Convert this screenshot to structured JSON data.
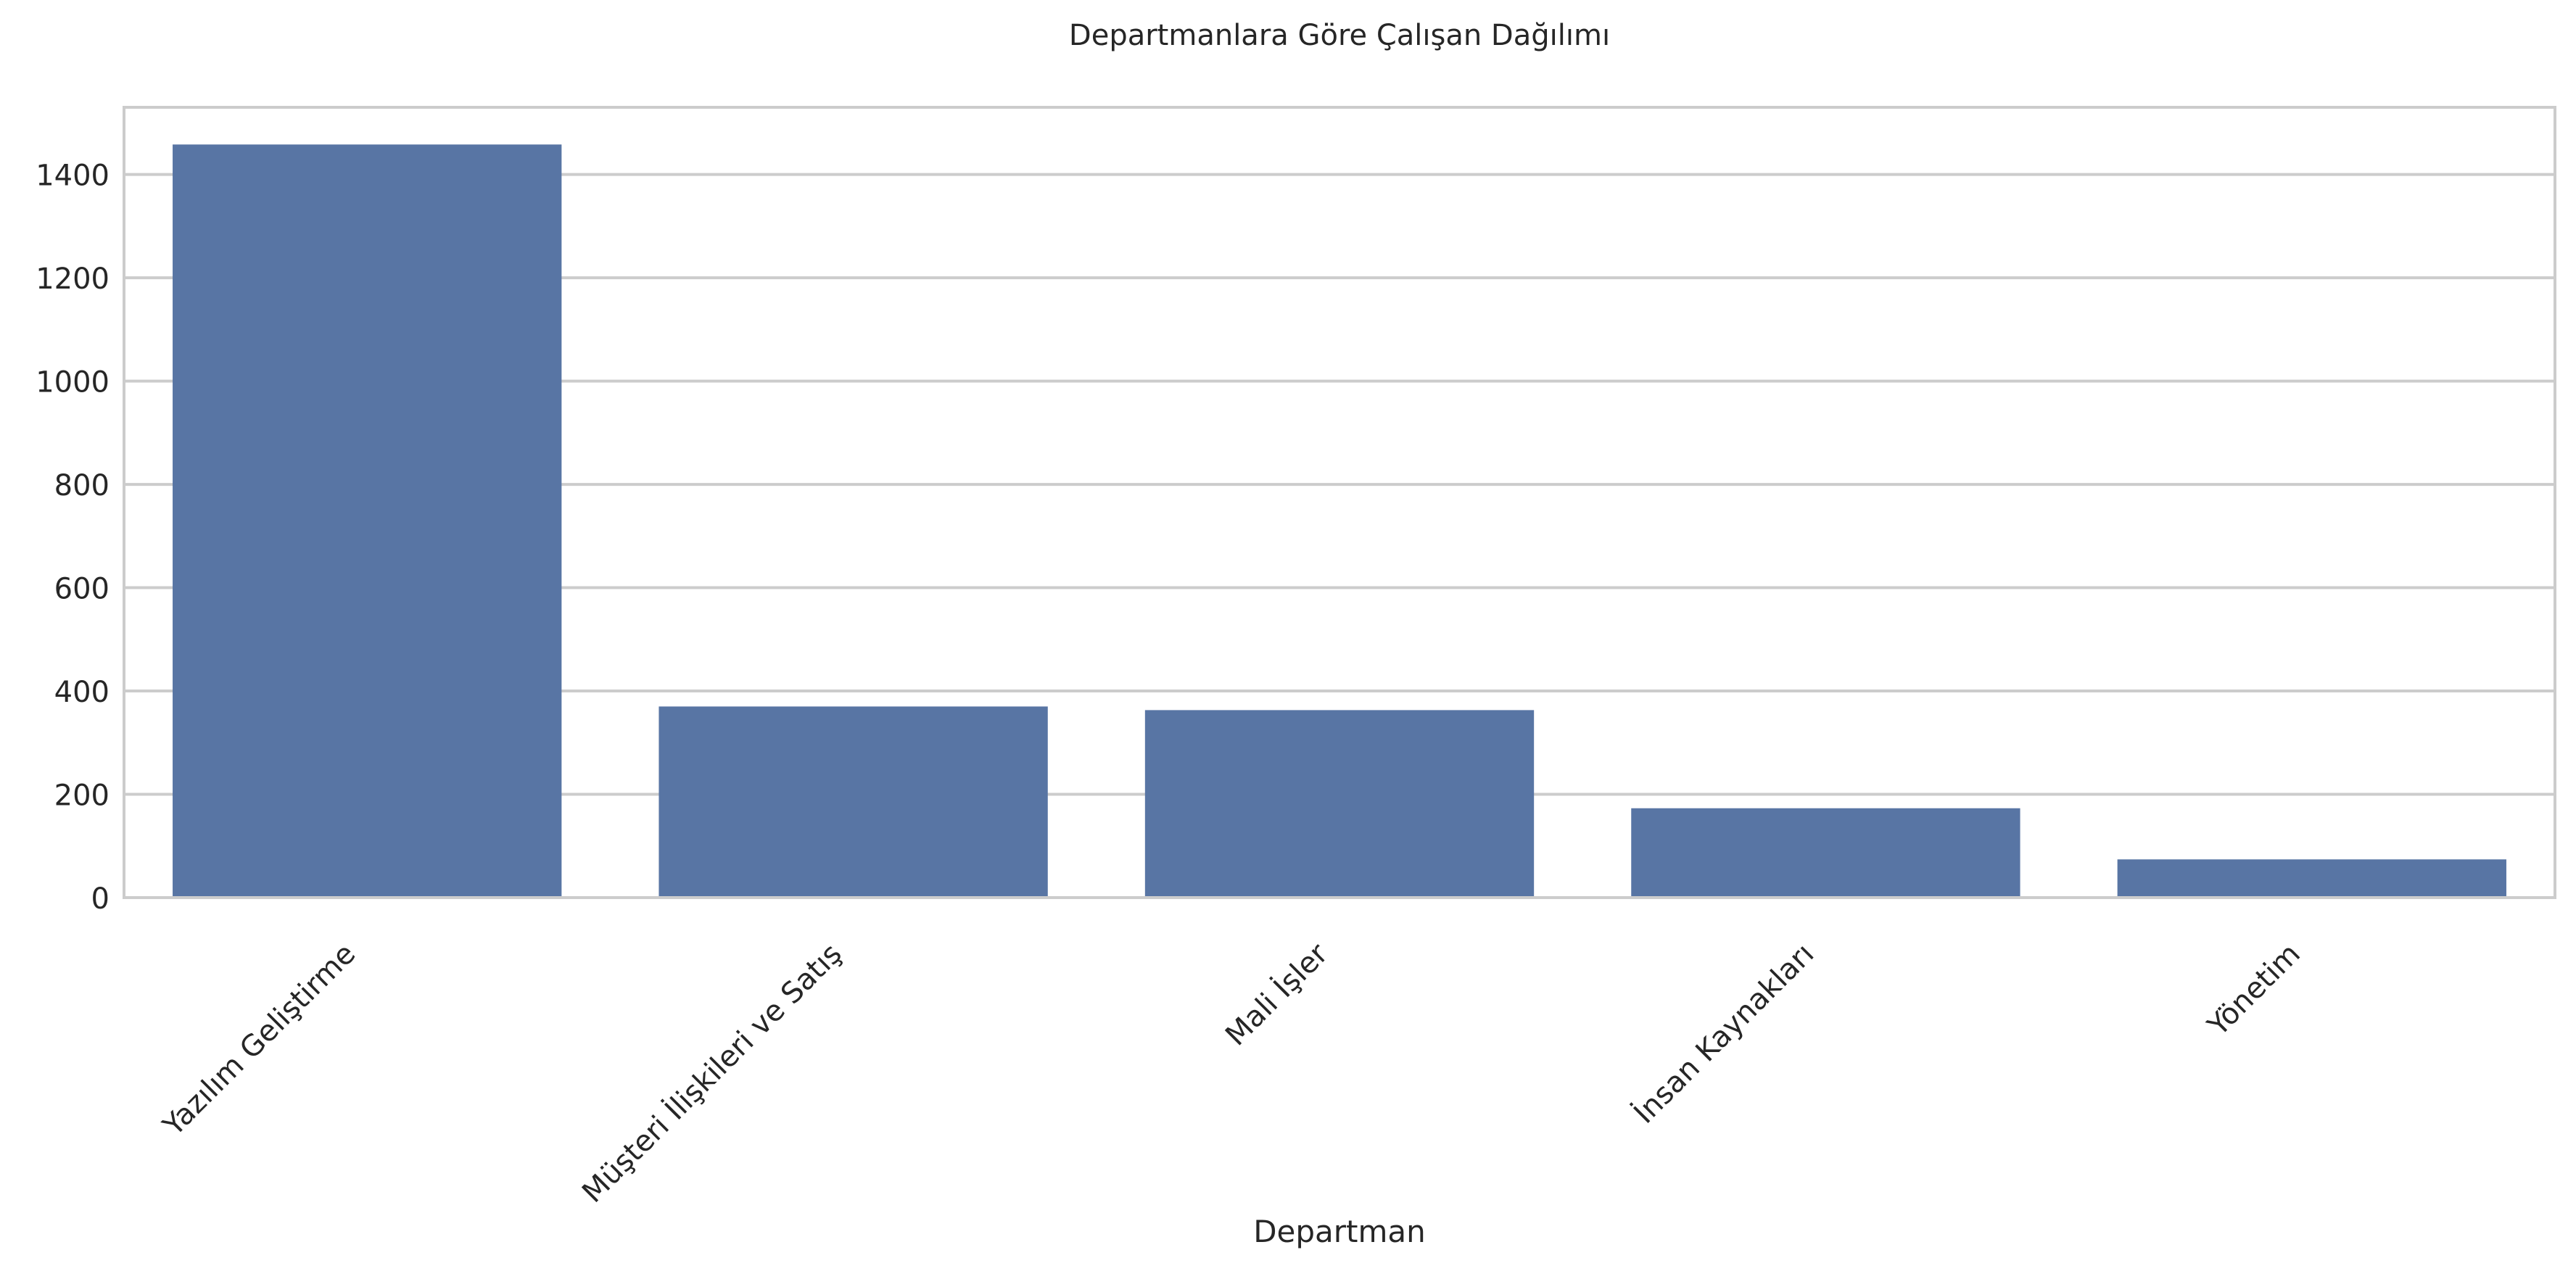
{
  "chart_data": {
    "type": "bar",
    "title": "Departmanlara Göre Çalışan Dağılımı",
    "xlabel": "Departman",
    "ylabel": "",
    "categories": [
      "Yazılım Geliştirme",
      "Müşteri İlişkileri ve Satış",
      "Mali İşler",
      "İnsan Kaynakları",
      "Yönetim"
    ],
    "values": [
      1458,
      370,
      363,
      173,
      74
    ],
    "ylim": [
      0,
      1530
    ],
    "yticks": [
      0,
      200,
      400,
      600,
      800,
      1000,
      1200,
      1400
    ],
    "grid": true,
    "bar_color": "#5875a4",
    "grid_color": "#cccccc",
    "frame_color": "#cccccc",
    "text_color": "#262626"
  }
}
